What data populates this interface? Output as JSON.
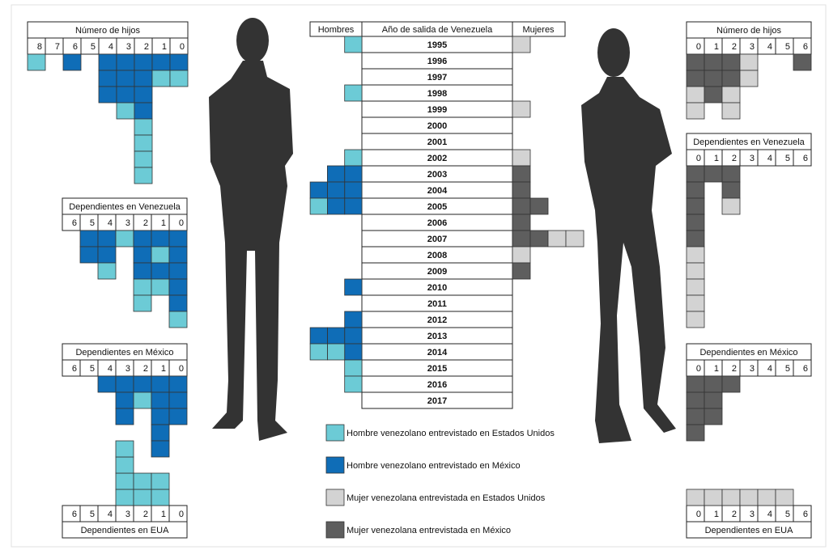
{
  "legend": [
    {
      "label": "Hombre venezolano entrevistado en Estados Unidos",
      "color": "#6ccbd6"
    },
    {
      "label": "Hombre venezolano entrevistado en México",
      "color": "#0f6db7"
    },
    {
      "label": "Mujer venezolana entrevistada en Estados Unidos",
      "color": "#d3d3d3"
    },
    {
      "label": "Mujer venezolana entrevistada en México",
      "color": "#5e5e5e"
    }
  ],
  "men": {
    "panels": [
      {
        "title": "Número de hijos",
        "columns": [
          {
            "label": 8,
            "cells": [
              0
            ]
          },
          {
            "label": 7,
            "cells": []
          },
          {
            "label": 6,
            "cells": [
              1
            ]
          },
          {
            "label": 5,
            "cells": []
          },
          {
            "label": 4,
            "cells": [
              1,
              1,
              1
            ]
          },
          {
            "label": 3,
            "cells": [
              1,
              1,
              1,
              0
            ]
          },
          {
            "label": 2,
            "cells": [
              1,
              1,
              1,
              1,
              0,
              0,
              0,
              0
            ]
          },
          {
            "label": 1,
            "cells": [
              1,
              0
            ]
          },
          {
            "label": 0,
            "cells": [
              1,
              0
            ]
          }
        ]
      },
      {
        "title": "Dependientes en Venezuela",
        "columns": [
          {
            "label": 6,
            "cells": []
          },
          {
            "label": 5,
            "cells": [
              1,
              1
            ]
          },
          {
            "label": 4,
            "cells": [
              1,
              1,
              0
            ]
          },
          {
            "label": 3,
            "cells": [
              0
            ]
          },
          {
            "label": 2,
            "cells": [
              1,
              1,
              1,
              0,
              0
            ]
          },
          {
            "label": 1,
            "cells": [
              1,
              0,
              1,
              0
            ]
          },
          {
            "label": 0,
            "cells": [
              1,
              1,
              1,
              1,
              1,
              0
            ]
          }
        ]
      },
      {
        "title": "Dependientes en México",
        "columns": [
          {
            "label": 6,
            "cells": []
          },
          {
            "label": 5,
            "cells": []
          },
          {
            "label": 4,
            "cells": [
              1
            ]
          },
          {
            "label": 3,
            "cells": [
              1,
              1,
              1
            ]
          },
          {
            "label": 2,
            "cells": [
              1,
              0
            ]
          },
          {
            "label": 1,
            "cells": [
              1,
              1,
              1,
              1,
              1
            ]
          },
          {
            "label": 0,
            "cells": [
              1,
              1,
              1
            ]
          }
        ]
      },
      {
        "title": "Dependientes en EUA",
        "columns": [
          {
            "label": 6,
            "cells": []
          },
          {
            "label": 5,
            "cells": []
          },
          {
            "label": 4,
            "cells": []
          },
          {
            "label": 3,
            "cells": [
              0,
              0,
              0,
              0
            ]
          },
          {
            "label": 2,
            "cells": [
              0,
              0
            ]
          },
          {
            "label": 1,
            "cells": [
              0,
              0
            ]
          },
          {
            "label": 0,
            "cells": []
          }
        ]
      }
    ]
  },
  "women": {
    "panels": [
      {
        "title": "Número de hijos",
        "columns": [
          {
            "label": 0,
            "cells": [
              3,
              3,
              2,
              2
            ]
          },
          {
            "label": 1,
            "cells": [
              3,
              3,
              3
            ]
          },
          {
            "label": 2,
            "cells": [
              3,
              3,
              2,
              2
            ]
          },
          {
            "label": 3,
            "cells": [
              2,
              2
            ]
          },
          {
            "label": 4,
            "cells": []
          },
          {
            "label": 5,
            "cells": []
          },
          {
            "label": 6,
            "cells": [
              3
            ]
          }
        ]
      },
      {
        "title": "Dependientes en Venezuela",
        "columns": [
          {
            "label": 0,
            "cells": [
              3,
              3,
              3,
              3,
              3,
              2,
              2,
              2,
              2,
              2
            ]
          },
          {
            "label": 1,
            "cells": [
              3
            ]
          },
          {
            "label": 2,
            "cells": [
              3,
              3,
              2
            ]
          },
          {
            "label": 3,
            "cells": []
          },
          {
            "label": 4,
            "cells": []
          },
          {
            "label": 5,
            "cells": []
          },
          {
            "label": 6,
            "cells": []
          }
        ]
      },
      {
        "title": "Dependientes en México",
        "columns": [
          {
            "label": 0,
            "cells": [
              3,
              3,
              3,
              3
            ]
          },
          {
            "label": 1,
            "cells": [
              3,
              3,
              3
            ]
          },
          {
            "label": 2,
            "cells": [
              3
            ]
          },
          {
            "label": 3,
            "cells": []
          },
          {
            "label": 4,
            "cells": []
          },
          {
            "label": 5,
            "cells": []
          },
          {
            "label": 6,
            "cells": []
          }
        ]
      },
      {
        "title": "Dependientes en EUA",
        "columns": [
          {
            "label": 0,
            "cells": [
              2
            ]
          },
          {
            "label": 1,
            "cells": [
              2
            ]
          },
          {
            "label": 2,
            "cells": [
              2
            ]
          },
          {
            "label": 3,
            "cells": [
              2
            ]
          },
          {
            "label": 4,
            "cells": [
              2
            ]
          },
          {
            "label": 5,
            "cells": [
              2
            ]
          },
          {
            "label": 6,
            "cells": []
          }
        ]
      }
    ]
  },
  "years": {
    "headers": {
      "men": "Hombres",
      "year": "Año de salida de Venezuela",
      "women": "Mujeres"
    },
    "rows": [
      {
        "year": 1995,
        "men": [
          0
        ],
        "women": [
          2
        ]
      },
      {
        "year": 1996,
        "men": [],
        "women": []
      },
      {
        "year": 1997,
        "men": [],
        "women": []
      },
      {
        "year": 1998,
        "men": [
          0
        ],
        "women": []
      },
      {
        "year": 1999,
        "men": [],
        "women": [
          2
        ]
      },
      {
        "year": 2000,
        "men": [],
        "women": []
      },
      {
        "year": 2001,
        "men": [],
        "women": []
      },
      {
        "year": 2002,
        "men": [
          0
        ],
        "women": [
          2
        ]
      },
      {
        "year": 2003,
        "men": [
          1,
          1
        ],
        "women": [
          3
        ]
      },
      {
        "year": 2004,
        "men": [
          1,
          1,
          1
        ],
        "women": [
          3
        ]
      },
      {
        "year": 2005,
        "men": [
          1,
          1,
          0
        ],
        "women": [
          3,
          3
        ]
      },
      {
        "year": 2006,
        "men": [],
        "women": [
          3
        ]
      },
      {
        "year": 2007,
        "men": [],
        "women": [
          3,
          3,
          2,
          2
        ]
      },
      {
        "year": 2008,
        "men": [],
        "women": [
          2
        ]
      },
      {
        "year": 2009,
        "men": [],
        "women": [
          3
        ]
      },
      {
        "year": 2010,
        "men": [
          1
        ],
        "women": []
      },
      {
        "year": 2011,
        "men": [],
        "women": []
      },
      {
        "year": 2012,
        "men": [
          1
        ],
        "women": []
      },
      {
        "year": 2013,
        "men": [
          1,
          1,
          1
        ],
        "women": []
      },
      {
        "year": 2014,
        "men": [
          1,
          0,
          0
        ],
        "women": []
      },
      {
        "year": 2015,
        "men": [
          0
        ],
        "women": []
      },
      {
        "year": 2016,
        "men": [
          0
        ],
        "women": []
      },
      {
        "year": 2017,
        "men": [],
        "women": []
      }
    ]
  }
}
